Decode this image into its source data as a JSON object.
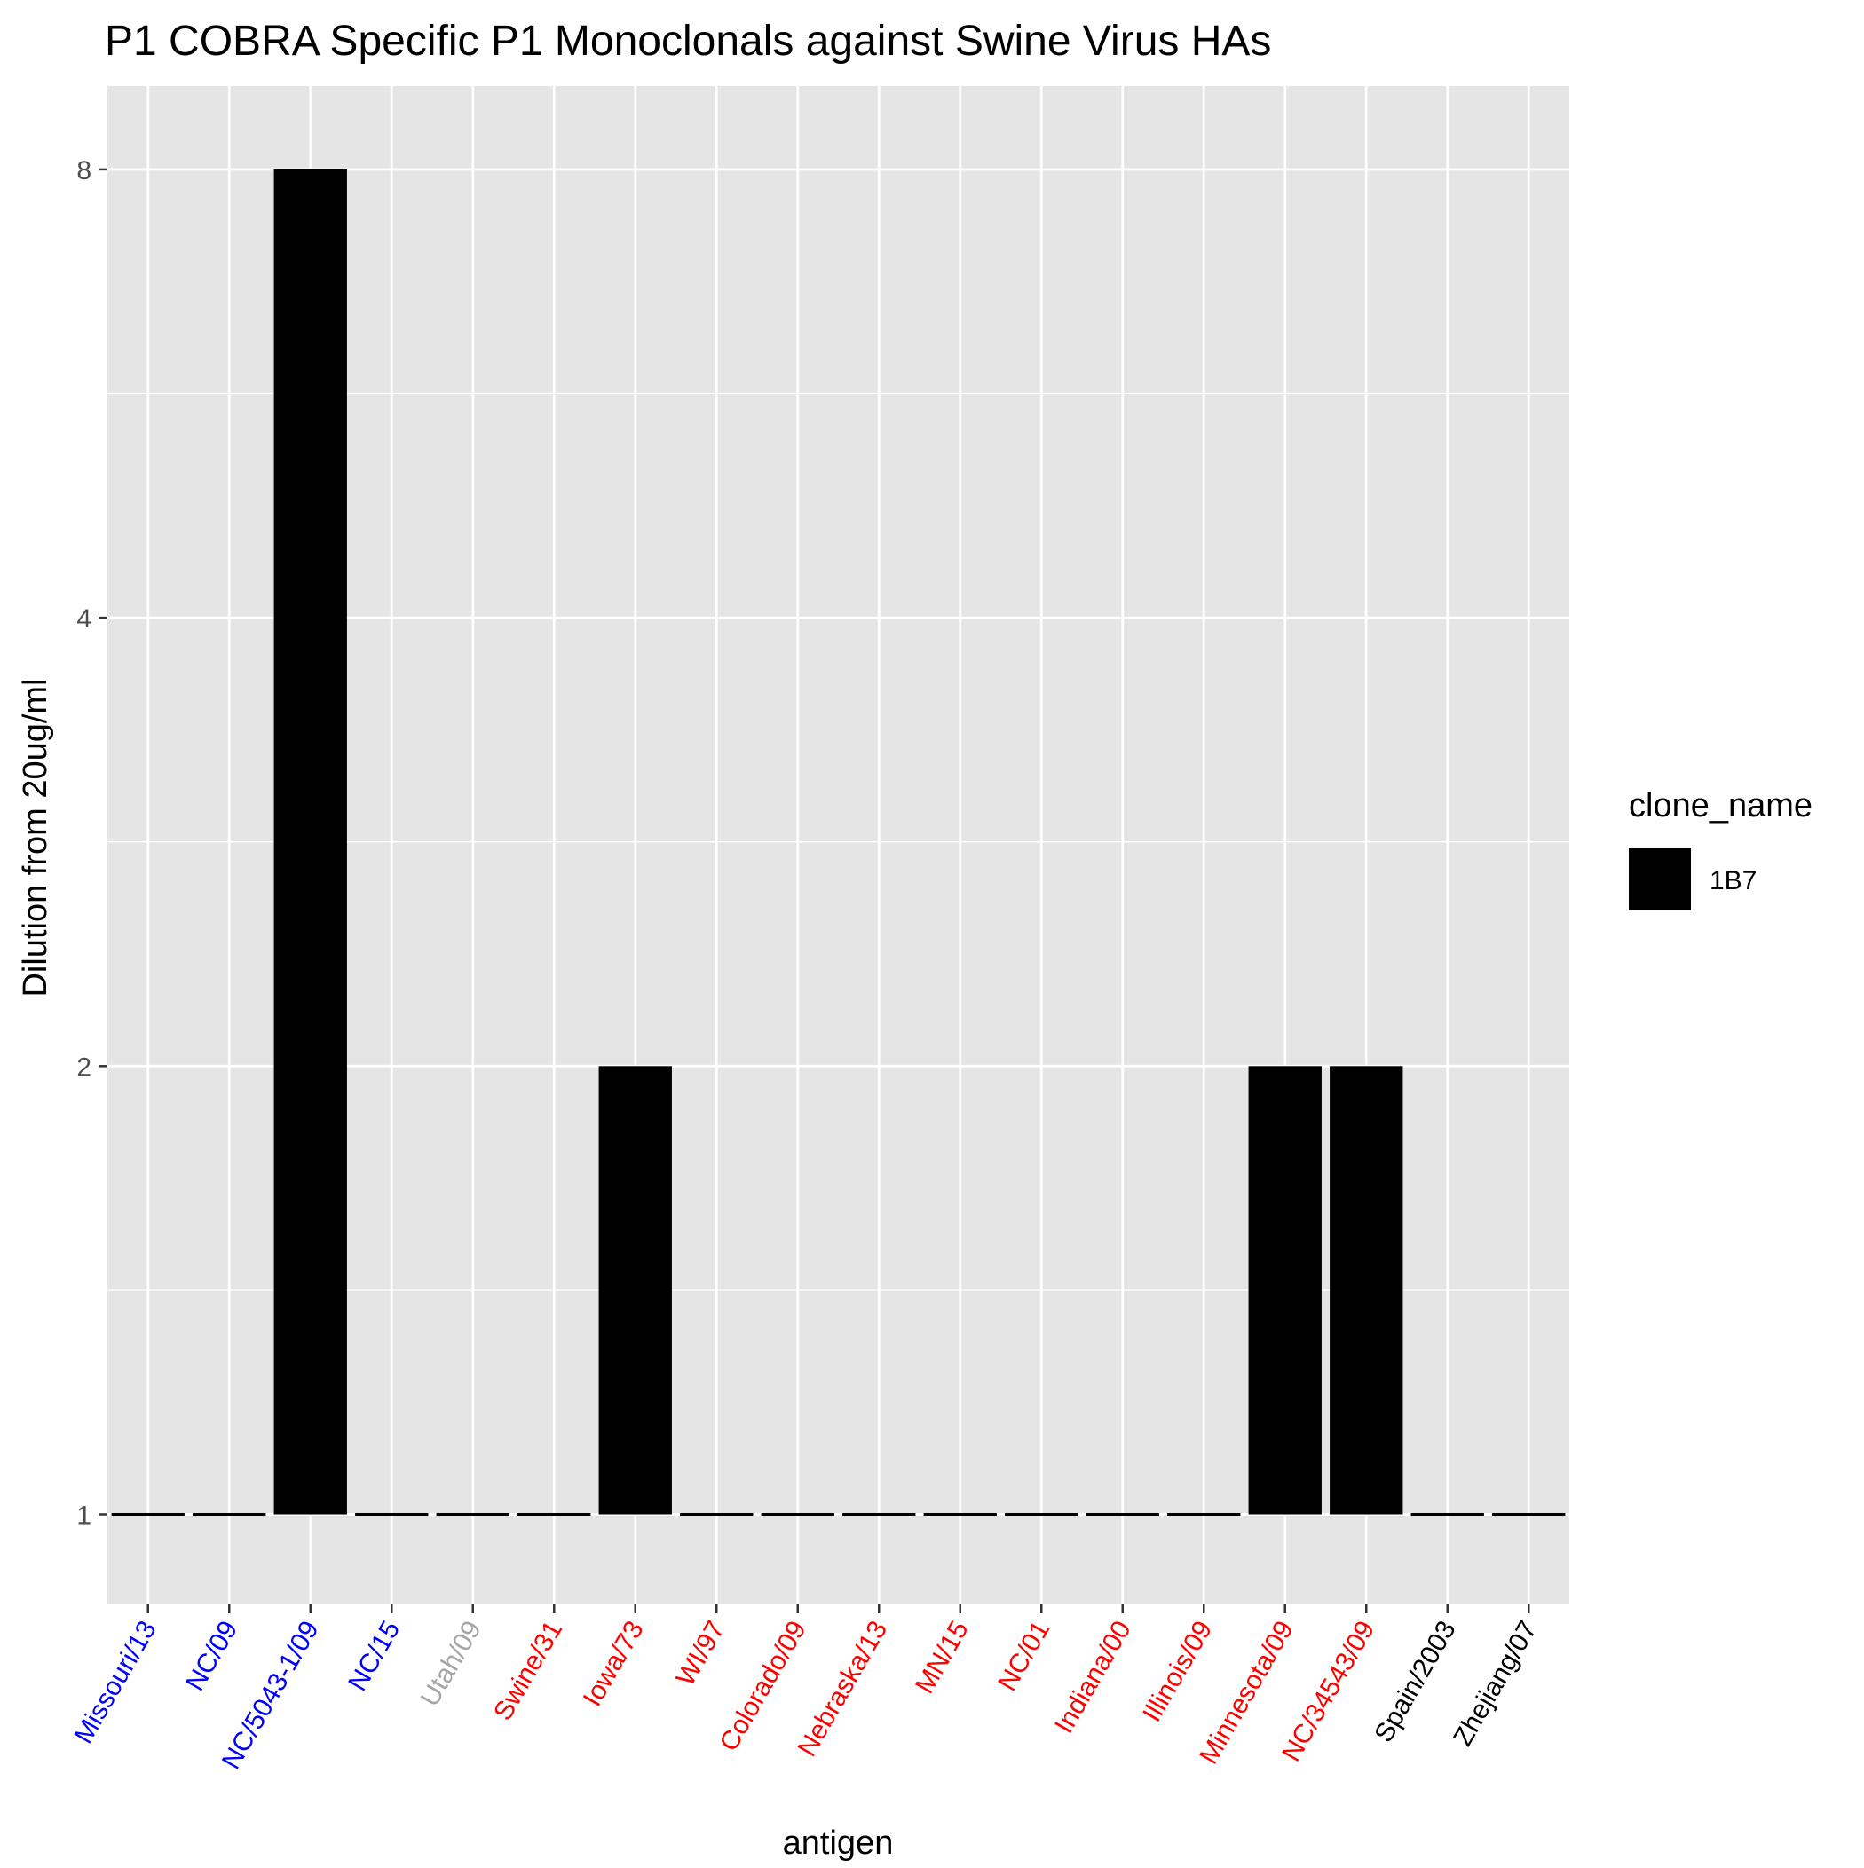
{
  "chart_data": {
    "type": "bar",
    "title": "P1 COBRA Specific P1 Monoclonals against Swine Virus HAs",
    "xlabel": "antigen",
    "ylabel": "Dilution from 20ug/ml",
    "y_scale": "log2",
    "ylim": [
      0.87,
      9.1
    ],
    "y_ticks": [
      1,
      2,
      4,
      8
    ],
    "grid": true,
    "legend_position": "right",
    "legend": {
      "title": "clone_name",
      "entries": [
        {
          "label": "1B7",
          "color": "#000000"
        }
      ]
    },
    "categories": [
      "Missouri/13",
      "NC/09",
      "NC/5043-1/09",
      "NC/15",
      "Utah/09",
      "Swine/31",
      "Iowa/73",
      "WI/97",
      "Colorado/09",
      "Nebraska/13",
      "MN/15",
      "NC/01",
      "Indiana/00",
      "Illinois/09",
      "Minnesota/09",
      "NC/34543/09",
      "Spain/2003",
      "Zhejiang/07"
    ],
    "category_colors": [
      "#0000ff",
      "#0000ff",
      "#0000ff",
      "#0000ff",
      "#a6a6a6",
      "#ff0000",
      "#ff0000",
      "#ff0000",
      "#ff0000",
      "#ff0000",
      "#ff0000",
      "#ff0000",
      "#ff0000",
      "#ff0000",
      "#ff0000",
      "#ff0000",
      "#000000",
      "#000000"
    ],
    "series": [
      {
        "name": "1B7",
        "color": "#000000",
        "values": [
          1,
          1,
          8,
          1,
          1,
          1,
          2,
          1,
          1,
          1,
          1,
          1,
          1,
          1,
          2,
          2,
          1,
          1
        ]
      }
    ],
    "panel_background": "#e5e5e5",
    "grid_color": "#ffffff"
  }
}
